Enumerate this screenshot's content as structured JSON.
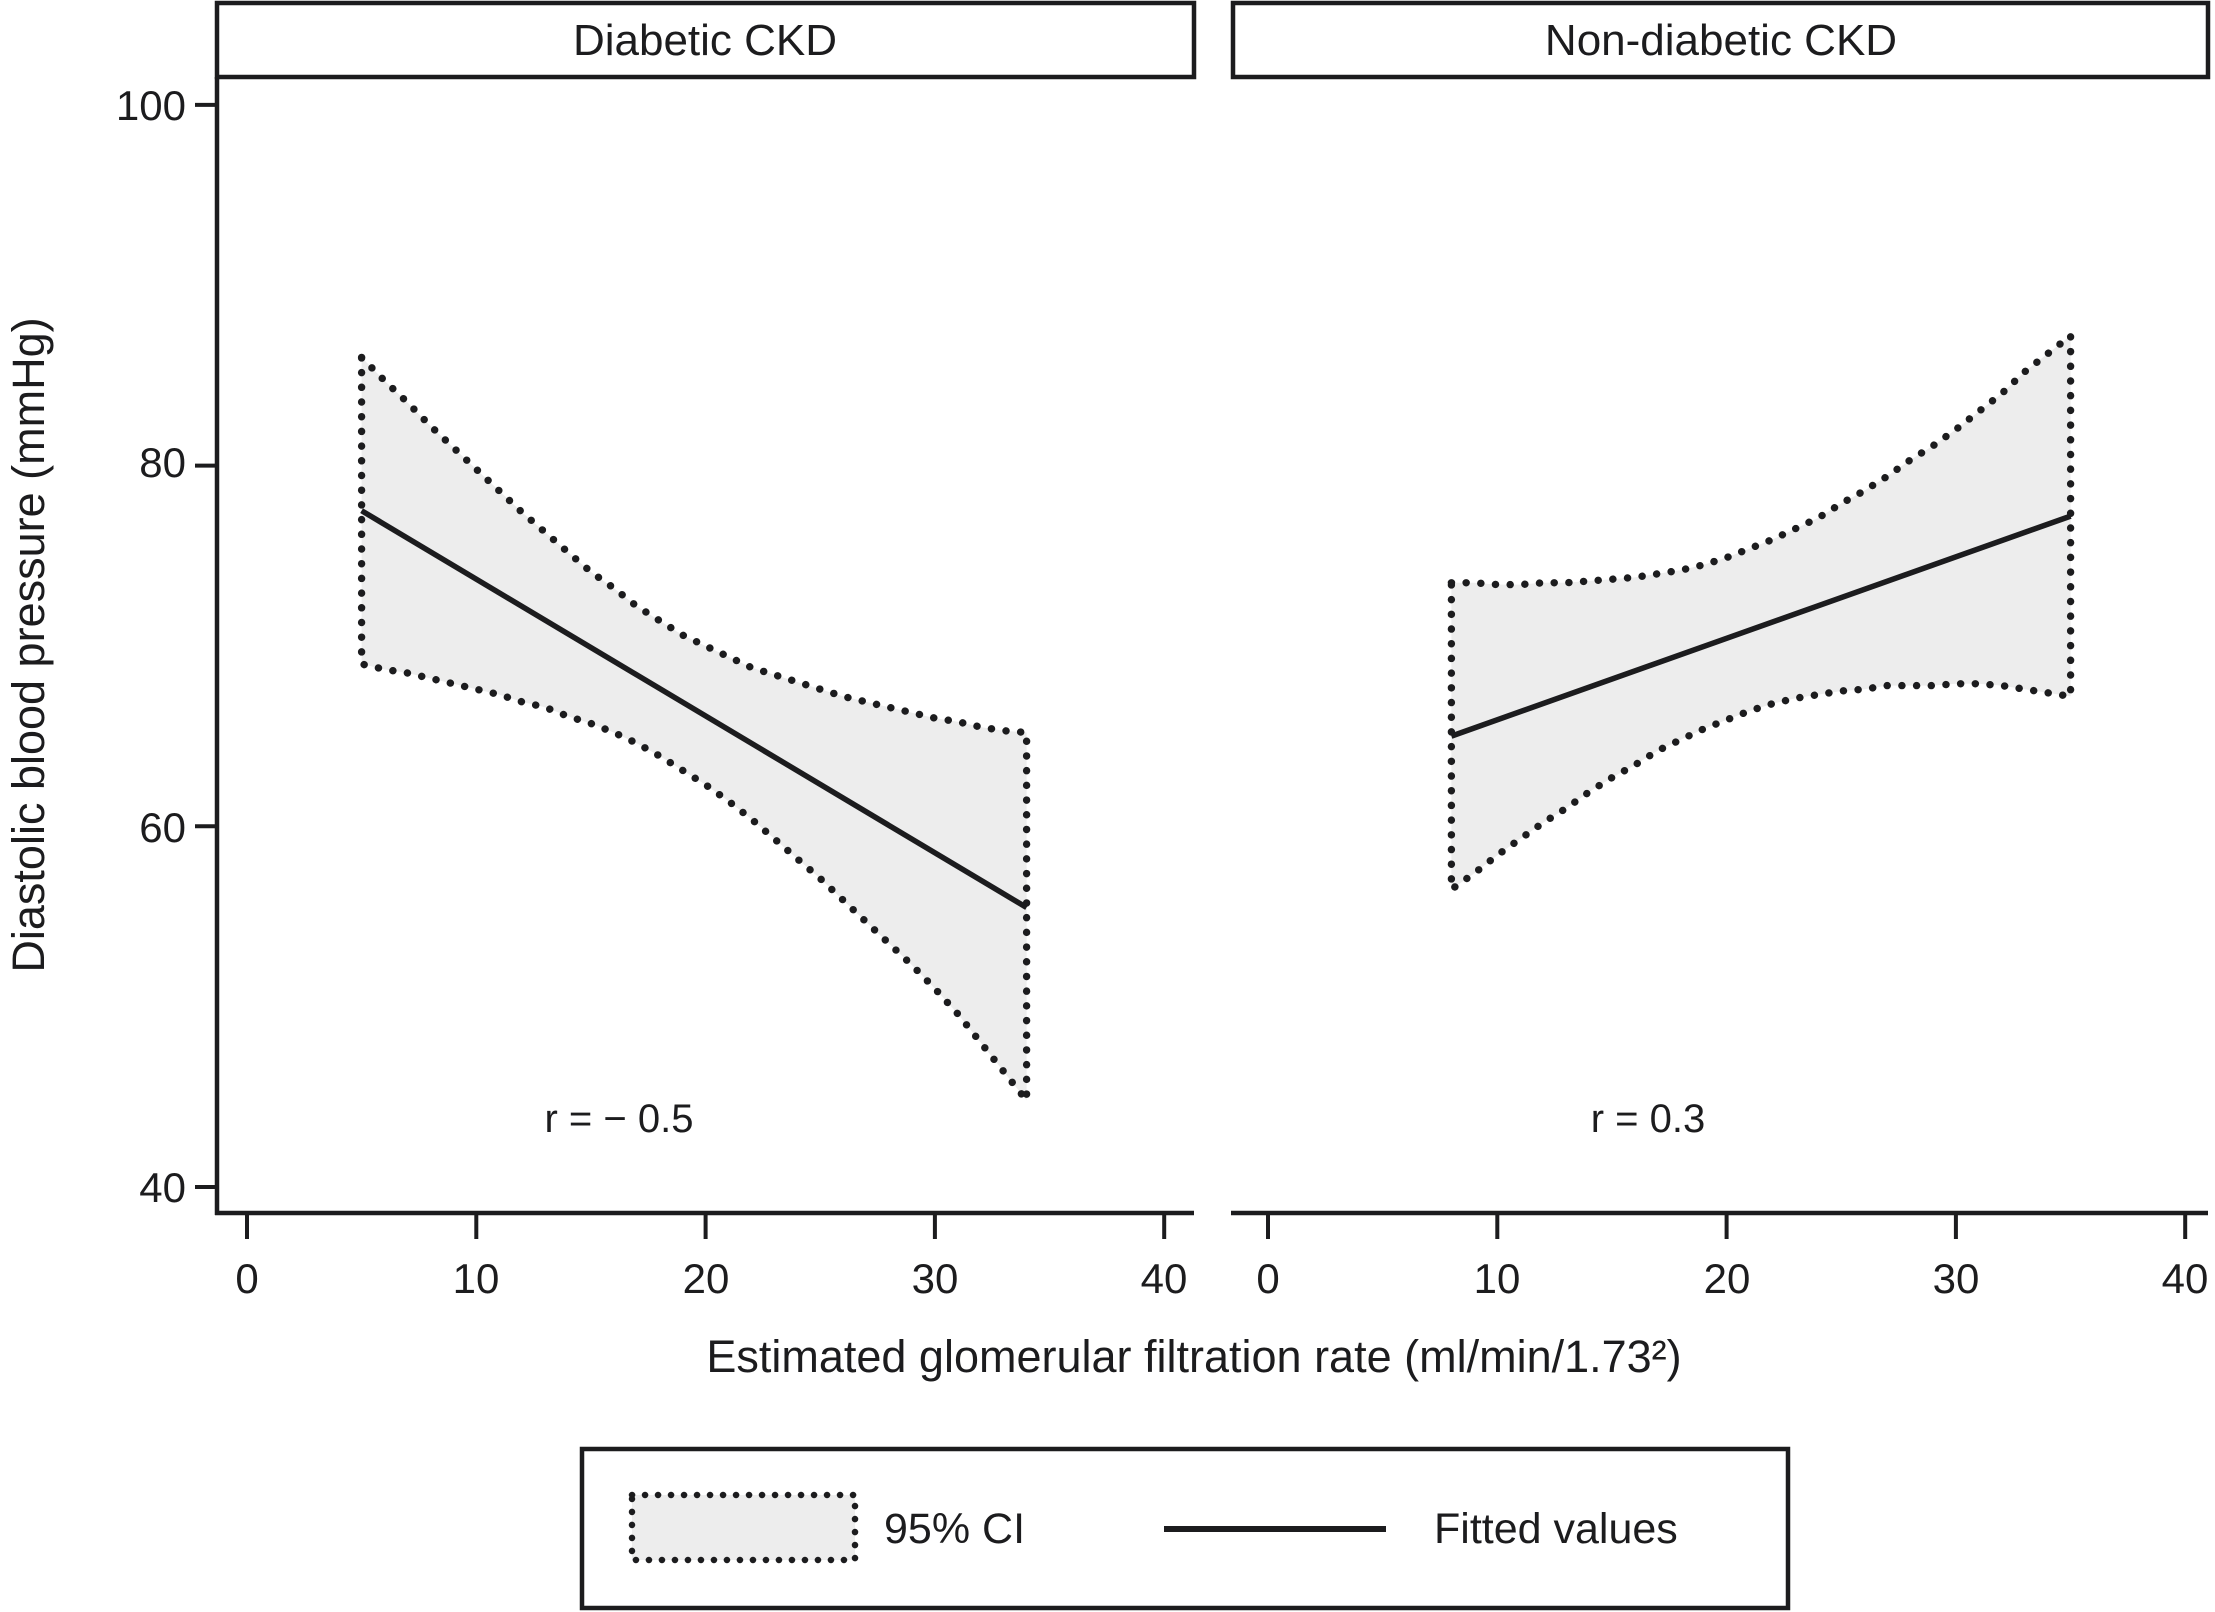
{
  "figure": {
    "background": "#ffffff",
    "ink_color": "#1c1c1e",
    "band_fill_color": "#ededed"
  },
  "chart_data": {
    "type": "line",
    "title": "",
    "xlabel": "Estimated glomerular filtration rate (ml/min/1.73²)",
    "ylabel": "Diastolic blood pressure (mmHg)",
    "x_ticks": [
      0,
      10,
      20,
      30,
      40
    ],
    "y_ticks": [
      40,
      60,
      80,
      100
    ],
    "xlim": [
      -1.3,
      41.5
    ],
    "ylim": [
      38.6,
      101.5
    ],
    "grid": false,
    "legend": {
      "position": "bottom-center",
      "ci": "95% CI",
      "fitted": "Fitted values"
    },
    "panels": [
      {
        "title": "Diabetic CKD",
        "annotation": "r = − 0.5",
        "r": -0.5,
        "fitted": {
          "x": [
            5,
            34
          ],
          "y": [
            77.5,
            55.5
          ]
        },
        "ci": {
          "x": [
            5,
            6,
            7,
            8,
            9,
            10,
            11,
            12,
            13,
            14,
            15,
            16,
            17,
            18,
            19,
            20,
            21,
            22,
            23,
            24,
            25,
            26,
            27,
            28,
            29,
            30,
            31,
            32,
            33,
            34
          ],
          "upper": [
            86.0,
            84.7,
            83.5,
            82.2,
            81.0,
            79.8,
            78.6,
            77.4,
            76.3,
            75.2,
            74.1,
            73.2,
            72.2,
            71.4,
            70.6,
            70.0,
            69.4,
            68.8,
            68.4,
            68.0,
            67.6,
            67.2,
            66.9,
            66.6,
            66.3,
            66.0,
            65.8,
            65.5,
            65.3,
            65.2
          ],
          "lower": [
            69.0,
            68.7,
            68.5,
            68.2,
            67.9,
            67.6,
            67.3,
            66.9,
            66.6,
            66.1,
            65.7,
            65.2,
            64.6,
            63.9,
            63.1,
            62.3,
            61.4,
            60.4,
            59.3,
            58.2,
            57.1,
            55.9,
            54.7,
            53.5,
            52.3,
            51.0,
            49.6,
            48.0,
            46.4,
            44.8
          ]
        }
      },
      {
        "title": "Non-diabetic CKD",
        "annotation": "r = 0.3",
        "r": 0.3,
        "fitted": {
          "x": [
            8,
            35
          ],
          "y": [
            65.0,
            77.2
          ]
        },
        "ci": {
          "x": [
            8,
            9,
            10,
            11,
            12,
            13,
            14,
            15,
            16,
            17,
            18,
            19,
            20,
            21,
            22,
            23,
            24,
            25,
            26,
            27,
            28,
            29,
            30,
            31,
            32,
            33,
            34,
            35
          ],
          "upper": [
            73.5,
            73.5,
            73.4,
            73.4,
            73.5,
            73.5,
            73.6,
            73.7,
            73.8,
            74.0,
            74.2,
            74.5,
            74.9,
            75.4,
            75.9,
            76.5,
            77.1,
            77.9,
            78.6,
            79.4,
            80.3,
            81.1,
            82.0,
            83.0,
            84.0,
            85.2,
            86.2,
            87.2
          ],
          "lower": [
            56.5,
            57.4,
            58.4,
            59.3,
            60.2,
            61.0,
            61.9,
            62.7,
            63.4,
            64.2,
            64.8,
            65.4,
            65.9,
            66.4,
            66.8,
            67.1,
            67.3,
            67.5,
            67.6,
            67.8,
            67.8,
            67.8,
            67.9,
            67.9,
            67.8,
            67.6,
            67.4,
            67.2
          ]
        }
      }
    ]
  }
}
